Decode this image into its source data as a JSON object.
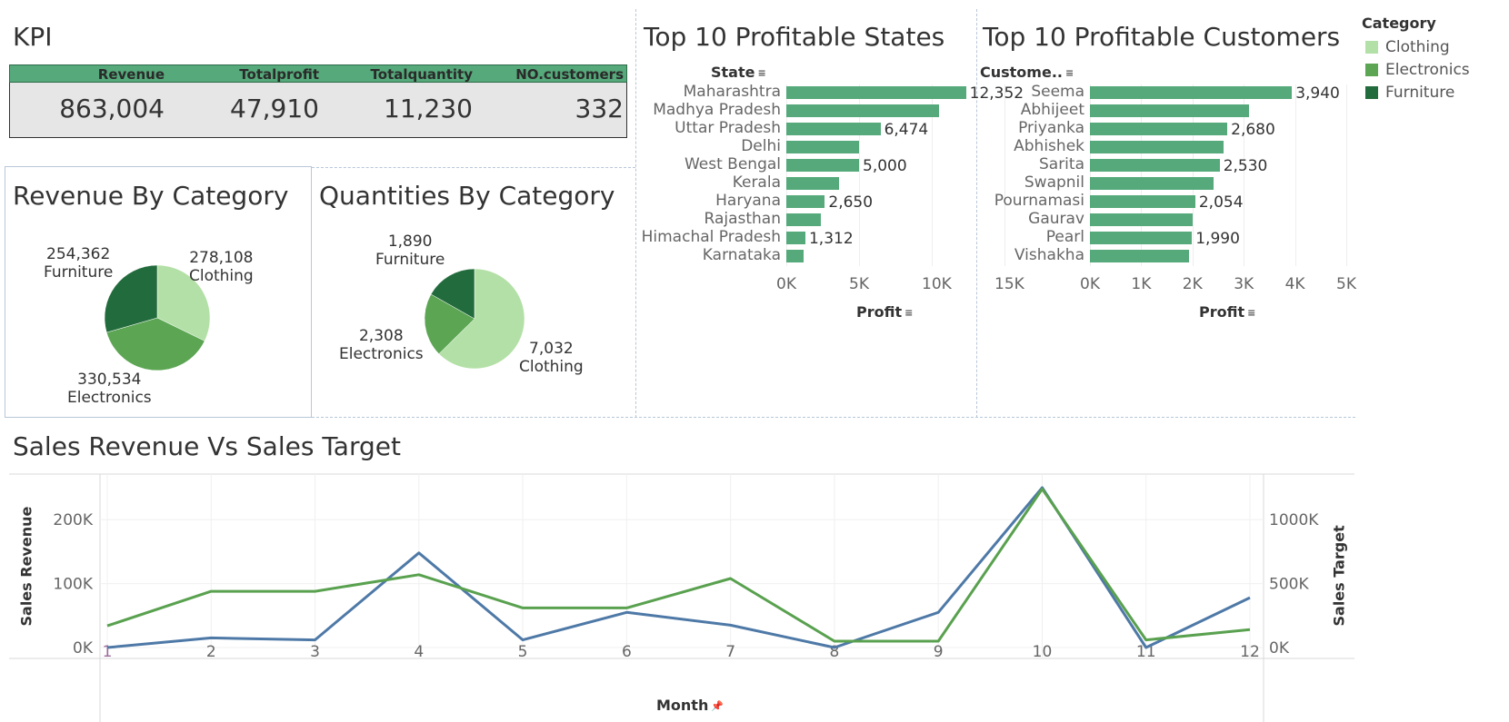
{
  "kpi": {
    "title": "KPI",
    "headers": [
      "Revenue",
      "Totalprofit",
      "Totalquantity",
      "NO.customers"
    ],
    "values": [
      "863,004",
      "47,910",
      "11,230",
      "332"
    ]
  },
  "revenue_by_category": {
    "title": "Revenue  By Category",
    "slices": [
      {
        "name": "Clothing",
        "value_label": "278,108",
        "value": 278108,
        "color": "#b3e0a6"
      },
      {
        "name": "Electronics",
        "value_label": "330,534",
        "value": 330534,
        "color": "#5ba553"
      },
      {
        "name": "Furniture",
        "value_label": "254,362",
        "value": 254362,
        "color": "#226b3c"
      }
    ]
  },
  "quantities_by_category": {
    "title": "Quantities By Category",
    "slices": [
      {
        "name": "Clothing",
        "value_label": "7,032",
        "value": 7032,
        "color": "#b3e0a6"
      },
      {
        "name": "Electronics",
        "value_label": "2,308",
        "value": 2308,
        "color": "#5ba553"
      },
      {
        "name": "Furniture",
        "value_label": "1,890",
        "value": 1890,
        "color": "#226b3c"
      }
    ]
  },
  "top_states": {
    "title": "Top 10 Profitable States",
    "dimension_header": "State",
    "xlabel": "Profit",
    "ticks": [
      "0K",
      "5K",
      "10K",
      "15K"
    ]
  },
  "top_customers": {
    "title": "Top 10 Profitable Customers",
    "dimension_header": "Custome..",
    "xlabel": "Profit",
    "ticks": [
      "0K",
      "1K",
      "2K",
      "3K",
      "4K",
      "5K"
    ]
  },
  "legend": {
    "title": "Category",
    "items": [
      {
        "name": "Clothing",
        "color": "#b3e0a6"
      },
      {
        "name": "Electronics",
        "color": "#5ba553"
      },
      {
        "name": "Furniture",
        "color": "#226b3c"
      }
    ]
  },
  "sales_chart": {
    "title": "Sales Revenue Vs Sales Target",
    "xlabel": "Month",
    "ylabel_left": "Sales Revenue",
    "ylabel_right": "Sales Target",
    "left_ticks": [
      "0K",
      "100K",
      "200K"
    ],
    "right_ticks": [
      "0K",
      "500K",
      "1000K"
    ],
    "months": [
      "1",
      "2",
      "3",
      "4",
      "5",
      "6",
      "7",
      "8",
      "9",
      "10",
      "11",
      "12"
    ]
  },
  "chart_data": [
    {
      "type": "bar",
      "title": "Top 10 Profitable States",
      "xlabel": "Profit",
      "ylabel": "State",
      "xlim": [
        0,
        17000
      ],
      "categories": [
        "Maharashtra",
        "Madhya Pradesh",
        "Uttar Pradesh",
        "Delhi",
        "West Bengal",
        "Kerala",
        "Haryana",
        "Rajasthan",
        "Himachal Pradesh",
        "Karnataka"
      ],
      "values": [
        12352,
        10500,
        6474,
        5000,
        5000,
        3600,
        2650,
        2400,
        1312,
        1200
      ],
      "labels": [
        "12,352",
        "",
        "6,474",
        "",
        "5,000",
        "",
        "2,650",
        "",
        "1,312",
        ""
      ],
      "color": "#55a97a"
    },
    {
      "type": "bar",
      "title": "Top 10 Profitable Customers",
      "xlabel": "Profit",
      "ylabel": "Custome..",
      "xlim": [
        0,
        5000
      ],
      "categories": [
        "Seema",
        "Abhijeet",
        "Priyanka",
        "Abhishek",
        "Sarita",
        "Swapnil",
        "Pournamasi",
        "Gaurav",
        "Pearl",
        "Vishakha"
      ],
      "values": [
        3940,
        3100,
        2680,
        2610,
        2530,
        2420,
        2054,
        2000,
        1990,
        1930
      ],
      "labels": [
        "3,940",
        "",
        "2,680",
        "",
        "2,530",
        "",
        "2,054",
        "",
        "1,990",
        ""
      ],
      "color": "#55a97a"
    },
    {
      "type": "line",
      "title": "Sales Revenue Vs Sales Target",
      "x": [
        1,
        2,
        3,
        4,
        5,
        6,
        7,
        8,
        9,
        10,
        11,
        12
      ],
      "xlabel": "Month",
      "series": [
        {
          "name": "Sales Revenue",
          "axis": "left",
          "color": "#4e79a7",
          "values": [
            0,
            15000,
            12000,
            148000,
            12000,
            55000,
            35000,
            0,
            55000,
            250000,
            0,
            78000
          ]
        },
        {
          "name": "Sales Target",
          "axis": "right",
          "color": "#59a14f",
          "values": [
            170000,
            440000,
            440000,
            570000,
            310000,
            310000,
            540000,
            50000,
            50000,
            1240000,
            60000,
            140000
          ]
        }
      ],
      "ylim_left": [
        0,
        260000
      ],
      "ylim_right": [
        0,
        1300000
      ]
    }
  ]
}
